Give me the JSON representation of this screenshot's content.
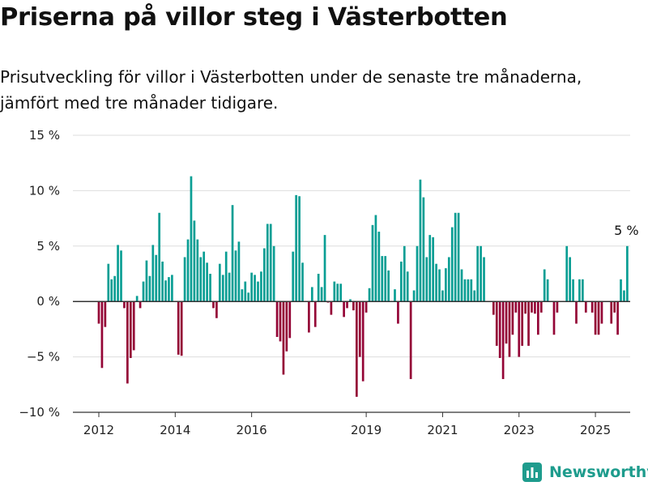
{
  "title": "Priserna på villor steg i Västerbotten",
  "subtitle": {
    "line1": "Prisutveckling för villor i Västerbotten under de senaste tre månaderna,",
    "line2": "jämfört med tre månader tidigare."
  },
  "brand": "Newsworthy",
  "colors": {
    "positive": "#0a9e94",
    "negative": "#940536",
    "brand": "#1e9c8d"
  },
  "chart_data": {
    "type": "bar",
    "title": "Priserna på villor steg i Västerbotten",
    "xlabel": "",
    "ylabel": "",
    "ylim": [
      -10,
      15
    ],
    "yticks": [
      -10,
      -5,
      0,
      5,
      10,
      15
    ],
    "ytick_labels": [
      "−10 %",
      "−5 %",
      "0 %",
      "5 %",
      "10 %",
      "15 %"
    ],
    "xticks": [
      "2012",
      "2014",
      "2016",
      "2019",
      "2021",
      "2023",
      "2025"
    ],
    "grid": true,
    "x_start": "2012-01",
    "frequency": "monthly",
    "values": [
      -2,
      -6,
      -2.3,
      3.4,
      2,
      2.3,
      5.1,
      4.6,
      -0.6,
      -7.4,
      -5.1,
      -4.4,
      0.5,
      -0.6,
      1.8,
      3.7,
      2.3,
      5.1,
      4.2,
      8,
      3.6,
      1.9,
      2.2,
      2.4,
      0,
      -4.8,
      -4.9,
      4,
      5.6,
      11.3,
      7.3,
      5.6,
      4,
      4.5,
      3.5,
      2.5,
      -0.6,
      -1.5,
      3.4,
      2.4,
      4.5,
      2.6,
      8.7,
      4.6,
      5.4,
      1.1,
      1.8,
      0.8,
      2.6,
      2.4,
      1.8,
      2.7,
      4.8,
      7,
      7,
      5,
      -3.2,
      -3.6,
      -6.6,
      -4.5,
      -3.3,
      4.5,
      9.6,
      9.5,
      3.5,
      0,
      -2.8,
      1.3,
      -2.3,
      2.5,
      1.3,
      6,
      -0.1,
      -1.2,
      1.8,
      1.6,
      1.6,
      -1.4,
      -0.6,
      0.2,
      -0.8,
      -8.6,
      -5,
      -7.2,
      -1,
      1.2,
      6.9,
      7.8,
      6.3,
      4.1,
      4.1,
      2.8,
      0,
      1.1,
      -2,
      3.6,
      5,
      2.7,
      -7,
      1,
      5,
      11,
      9.4,
      4,
      6,
      5.8,
      3.4,
      2.9,
      1,
      3,
      4,
      6.7,
      8,
      8,
      2.9,
      2,
      2,
      2,
      1,
      5,
      5,
      4,
      0,
      0,
      -1.2,
      -4,
      -5.1,
      -7,
      -3.8,
      -5,
      -3,
      -1,
      -5,
      -4,
      -1.1,
      -4,
      -1,
      -1.1,
      -3,
      -1,
      2.9,
      2,
      0,
      -3,
      -1,
      0,
      0,
      5,
      4,
      2,
      -2,
      2,
      2,
      -1,
      0,
      -1,
      -3,
      -3,
      -2,
      0,
      0,
      -2,
      -1,
      -3,
      2,
      1,
      5
    ]
  },
  "annotation": {
    "label": "5 %"
  }
}
